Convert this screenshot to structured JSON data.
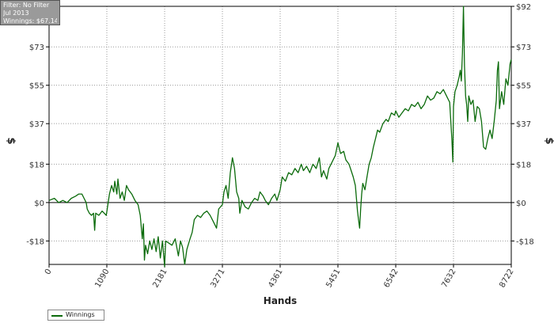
{
  "info_box": {
    "filter": "Filter: No Filter",
    "period": "Jul 2013",
    "winnings": "Winnings: $67.14"
  },
  "legend": {
    "winnings_label": "Winnings"
  },
  "colors": {
    "series": "#0b6b0b",
    "grid": "#9a9a9a",
    "axis": "#000000"
  },
  "chart_data": {
    "type": "line",
    "xlabel": "Hands",
    "ylabel": "$",
    "xlim": [
      0,
      8722
    ],
    "ylim": [
      -29,
      92
    ],
    "x_ticks": [
      0,
      1090,
      2181,
      3271,
      4361,
      5451,
      6542,
      7632,
      8722
    ],
    "y_ticks": [
      -18,
      0,
      18,
      37,
      55,
      73,
      92
    ],
    "y_tick_labels": [
      "-$18",
      "$0",
      "$18",
      "$37",
      "$55",
      "$73",
      "$92"
    ],
    "grid": true,
    "legend_position": "bottom-left",
    "series": [
      {
        "name": "Winnings",
        "color": "#0b6b0b",
        "points": [
          [
            0,
            1
          ],
          [
            100,
            2
          ],
          [
            180,
            0
          ],
          [
            260,
            1
          ],
          [
            340,
            0
          ],
          [
            420,
            2
          ],
          [
            500,
            3
          ],
          [
            560,
            4
          ],
          [
            620,
            4
          ],
          [
            660,
            2
          ],
          [
            700,
            0
          ],
          [
            720,
            -3
          ],
          [
            760,
            -5
          ],
          [
            800,
            -6
          ],
          [
            840,
            -5
          ],
          [
            860,
            -13
          ],
          [
            880,
            -5
          ],
          [
            940,
            -6
          ],
          [
            1000,
            -4
          ],
          [
            1080,
            -6
          ],
          [
            1140,
            4
          ],
          [
            1180,
            8
          ],
          [
            1220,
            5
          ],
          [
            1240,
            10
          ],
          [
            1280,
            4
          ],
          [
            1300,
            11
          ],
          [
            1340,
            2
          ],
          [
            1380,
            5
          ],
          [
            1420,
            1
          ],
          [
            1460,
            8
          ],
          [
            1500,
            6
          ],
          [
            1560,
            4
          ],
          [
            1620,
            1
          ],
          [
            1680,
            -1
          ],
          [
            1720,
            -6
          ],
          [
            1760,
            -17
          ],
          [
            1780,
            -10
          ],
          [
            1800,
            -27
          ],
          [
            1820,
            -20
          ],
          [
            1860,
            -24
          ],
          [
            1900,
            -18
          ],
          [
            1940,
            -22
          ],
          [
            1980,
            -17
          ],
          [
            2020,
            -23
          ],
          [
            2060,
            -16
          ],
          [
            2100,
            -26
          ],
          [
            2140,
            -18
          ],
          [
            2181,
            -30
          ],
          [
            2200,
            -18
          ],
          [
            2260,
            -19
          ],
          [
            2320,
            -20
          ],
          [
            2380,
            -17
          ],
          [
            2440,
            -25
          ],
          [
            2480,
            -18
          ],
          [
            2520,
            -21
          ],
          [
            2560,
            -29
          ],
          [
            2600,
            -22
          ],
          [
            2660,
            -17
          ],
          [
            2700,
            -14
          ],
          [
            2740,
            -8
          ],
          [
            2800,
            -6
          ],
          [
            2860,
            -7
          ],
          [
            2920,
            -5
          ],
          [
            2980,
            -4
          ],
          [
            3040,
            -6
          ],
          [
            3100,
            -9
          ],
          [
            3160,
            -12
          ],
          [
            3200,
            -3
          ],
          [
            3271,
            -1
          ],
          [
            3300,
            5
          ],
          [
            3340,
            8
          ],
          [
            3380,
            2
          ],
          [
            3420,
            14
          ],
          [
            3460,
            21
          ],
          [
            3500,
            16
          ],
          [
            3540,
            5
          ],
          [
            3580,
            2
          ],
          [
            3600,
            -5
          ],
          [
            3640,
            1
          ],
          [
            3700,
            -2
          ],
          [
            3760,
            -3
          ],
          [
            3820,
            0
          ],
          [
            3880,
            2
          ],
          [
            3940,
            1
          ],
          [
            3980,
            5
          ],
          [
            4040,
            3
          ],
          [
            4080,
            1
          ],
          [
            4140,
            -1
          ],
          [
            4200,
            2
          ],
          [
            4260,
            4
          ],
          [
            4300,
            1
          ],
          [
            4361,
            6
          ],
          [
            4400,
            12
          ],
          [
            4460,
            10
          ],
          [
            4520,
            14
          ],
          [
            4580,
            13
          ],
          [
            4640,
            16
          ],
          [
            4700,
            14
          ],
          [
            4760,
            18
          ],
          [
            4800,
            15
          ],
          [
            4860,
            17
          ],
          [
            4920,
            14
          ],
          [
            4980,
            18
          ],
          [
            5040,
            16
          ],
          [
            5100,
            21
          ],
          [
            5140,
            12
          ],
          [
            5180,
            15
          ],
          [
            5240,
            11
          ],
          [
            5280,
            16
          ],
          [
            5340,
            19
          ],
          [
            5400,
            22
          ],
          [
            5451,
            28
          ],
          [
            5500,
            23
          ],
          [
            5560,
            24
          ],
          [
            5600,
            20
          ],
          [
            5660,
            18
          ],
          [
            5700,
            15
          ],
          [
            5740,
            12
          ],
          [
            5780,
            8
          ],
          [
            5820,
            -4
          ],
          [
            5840,
            -8
          ],
          [
            5860,
            -12
          ],
          [
            5880,
            -3
          ],
          [
            5900,
            4
          ],
          [
            5920,
            9
          ],
          [
            5960,
            6
          ],
          [
            6000,
            12
          ],
          [
            6040,
            18
          ],
          [
            6080,
            21
          ],
          [
            6120,
            26
          ],
          [
            6160,
            30
          ],
          [
            6200,
            34
          ],
          [
            6240,
            33
          ],
          [
            6300,
            37
          ],
          [
            6360,
            39
          ],
          [
            6400,
            38
          ],
          [
            6460,
            42
          ],
          [
            6520,
            41
          ],
          [
            6542,
            43
          ],
          [
            6600,
            40
          ],
          [
            6660,
            42
          ],
          [
            6720,
            44
          ],
          [
            6780,
            43
          ],
          [
            6840,
            46
          ],
          [
            6900,
            45
          ],
          [
            6960,
            47
          ],
          [
            7020,
            44
          ],
          [
            7080,
            46
          ],
          [
            7140,
            50
          ],
          [
            7200,
            48
          ],
          [
            7260,
            49
          ],
          [
            7320,
            52
          ],
          [
            7380,
            51
          ],
          [
            7440,
            53
          ],
          [
            7500,
            50
          ],
          [
            7560,
            47
          ],
          [
            7600,
            30
          ],
          [
            7620,
            19
          ],
          [
            7632,
            45
          ],
          [
            7660,
            52
          ],
          [
            7700,
            55
          ],
          [
            7740,
            59
          ],
          [
            7760,
            62
          ],
          [
            7780,
            57
          ],
          [
            7800,
            70
          ],
          [
            7820,
            92
          ],
          [
            7840,
            64
          ],
          [
            7860,
            50
          ],
          [
            7880,
            46
          ],
          [
            7900,
            38
          ],
          [
            7920,
            50
          ],
          [
            7960,
            46
          ],
          [
            8000,
            48
          ],
          [
            8040,
            38
          ],
          [
            8080,
            45
          ],
          [
            8120,
            44
          ],
          [
            8160,
            38
          ],
          [
            8200,
            26
          ],
          [
            8240,
            25
          ],
          [
            8280,
            30
          ],
          [
            8320,
            34
          ],
          [
            8360,
            30
          ],
          [
            8400,
            38
          ],
          [
            8440,
            48
          ],
          [
            8460,
            62
          ],
          [
            8480,
            66
          ],
          [
            8500,
            44
          ],
          [
            8540,
            52
          ],
          [
            8580,
            46
          ],
          [
            8620,
            58
          ],
          [
            8660,
            55
          ],
          [
            8700,
            65
          ],
          [
            8722,
            67.14
          ]
        ]
      }
    ]
  }
}
